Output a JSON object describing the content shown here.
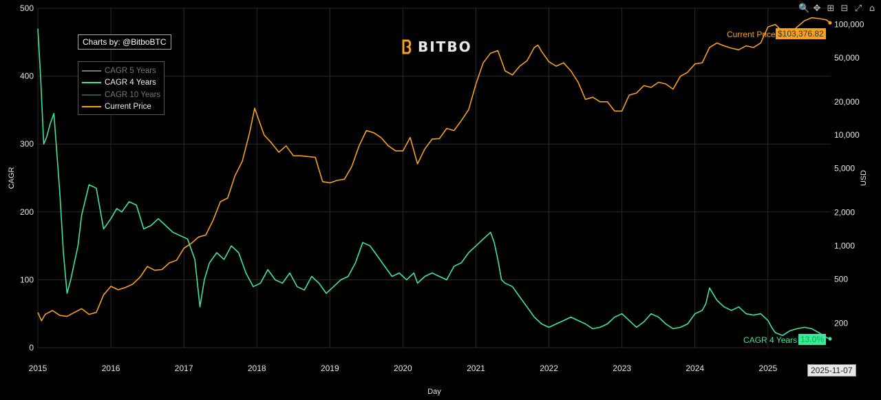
{
  "toolbar": [
    {
      "name": "zoom-icon",
      "glyph": "🔍"
    },
    {
      "name": "pan-icon",
      "glyph": "✥"
    },
    {
      "name": "zoom-in-icon",
      "glyph": "⊞"
    },
    {
      "name": "zoom-out-icon",
      "glyph": "⊟"
    },
    {
      "name": "autoscale-icon",
      "glyph": "⤢"
    },
    {
      "name": "home-icon",
      "glyph": "⌂"
    }
  ],
  "credit": "Charts by: @BitboBTC",
  "brand": "BITBO",
  "legend": [
    {
      "label": "CAGR 5 Years",
      "color": "#777777",
      "active": false
    },
    {
      "label": "CAGR 4 Years",
      "color": "#3ee6a0",
      "active": true
    },
    {
      "label": "CAGR 10 Years",
      "color": "#1f5f3f",
      "active": false
    },
    {
      "label": "Current Price",
      "color": "#f7a21a",
      "active": true
    }
  ],
  "annotations": {
    "price_label": "Current Price",
    "price_value": "$103,376.82",
    "cagr_label": "CAGR 4 Years",
    "cagr_value": "13.0%",
    "date": "2025-11-07"
  },
  "colors": {
    "cagr": "#3ee6a0",
    "price": "#f7a21a",
    "grid": "#2a2a2a"
  },
  "chart_data": {
    "type": "line",
    "xlabel": "Day",
    "ylabel": "CAGR",
    "y2label": "USD",
    "xlim": [
      2015.0,
      2025.86
    ],
    "ylim": [
      0,
      500
    ],
    "y2_scale": "log",
    "y2lim": [
      120,
      140000
    ],
    "x_ticks": [
      "2015",
      "2016",
      "2017",
      "2018",
      "2019",
      "2020",
      "2021",
      "2022",
      "2023",
      "2024",
      "2025"
    ],
    "y_ticks": [
      0,
      100,
      200,
      300,
      400,
      500
    ],
    "y2_ticks": [
      {
        "value": 200,
        "label": "200"
      },
      {
        "value": 500,
        "label": "500"
      },
      {
        "value": 1000,
        "label": "1,000"
      },
      {
        "value": 2000,
        "label": "2,000"
      },
      {
        "value": 5000,
        "label": "5,000"
      },
      {
        "value": 10000,
        "label": "10,000"
      },
      {
        "value": 20000,
        "label": "20,000"
      },
      {
        "value": 50000,
        "label": "50,000"
      },
      {
        "value": 100000,
        "label": "100,000"
      }
    ],
    "grid": true,
    "legend_position": "top-left",
    "series": [
      {
        "name": "CAGR 4 Years",
        "axis": "left",
        "x": [
          2015.0,
          2015.04,
          2015.08,
          2015.12,
          2015.17,
          2015.22,
          2015.3,
          2015.35,
          2015.4,
          2015.45,
          2015.5,
          2015.55,
          2015.6,
          2015.7,
          2015.8,
          2015.9,
          2016.0,
          2016.08,
          2016.15,
          2016.25,
          2016.35,
          2016.45,
          2016.55,
          2016.65,
          2016.75,
          2016.85,
          2016.95,
          2017.05,
          2017.15,
          2017.22,
          2017.28,
          2017.35,
          2017.45,
          2017.55,
          2017.65,
          2017.75,
          2017.85,
          2017.95,
          2018.05,
          2018.15,
          2018.25,
          2018.35,
          2018.45,
          2018.55,
          2018.65,
          2018.75,
          2018.85,
          2018.95,
          2019.05,
          2019.15,
          2019.25,
          2019.35,
          2019.45,
          2019.55,
          2019.65,
          2019.75,
          2019.85,
          2019.95,
          2020.05,
          2020.15,
          2020.2,
          2020.3,
          2020.4,
          2020.5,
          2020.6,
          2020.7,
          2020.8,
          2020.9,
          2021.0,
          2021.1,
          2021.2,
          2021.25,
          2021.3,
          2021.35,
          2021.4,
          2021.5,
          2021.6,
          2021.7,
          2021.8,
          2021.9,
          2022.0,
          2022.1,
          2022.2,
          2022.3,
          2022.4,
          2022.5,
          2022.6,
          2022.7,
          2022.8,
          2022.9,
          2023.0,
          2023.1,
          2023.2,
          2023.3,
          2023.4,
          2023.5,
          2023.6,
          2023.7,
          2023.8,
          2023.9,
          2024.0,
          2024.1,
          2024.15,
          2024.2,
          2024.3,
          2024.4,
          2024.5,
          2024.6,
          2024.7,
          2024.8,
          2024.9,
          2025.0,
          2025.05,
          2025.1,
          2025.2,
          2025.3,
          2025.4,
          2025.5,
          2025.6,
          2025.7,
          2025.78,
          2025.85
        ],
        "y": [
          470,
          395,
          300,
          310,
          330,
          345,
          230,
          140,
          80,
          100,
          125,
          150,
          195,
          240,
          235,
          175,
          190,
          205,
          200,
          215,
          210,
          175,
          180,
          190,
          180,
          170,
          165,
          160,
          130,
          60,
          100,
          125,
          140,
          130,
          150,
          140,
          110,
          90,
          95,
          115,
          100,
          95,
          110,
          90,
          85,
          105,
          95,
          80,
          90,
          100,
          105,
          125,
          155,
          150,
          135,
          120,
          105,
          110,
          100,
          110,
          95,
          105,
          110,
          105,
          100,
          120,
          125,
          140,
          150,
          160,
          170,
          155,
          130,
          100,
          95,
          90,
          75,
          60,
          45,
          35,
          30,
          35,
          40,
          45,
          40,
          35,
          28,
          30,
          35,
          45,
          50,
          40,
          30,
          38,
          50,
          45,
          35,
          28,
          30,
          35,
          50,
          55,
          65,
          88,
          70,
          60,
          55,
          60,
          50,
          48,
          50,
          40,
          30,
          22,
          18,
          25,
          28,
          30,
          28,
          22,
          16,
          13
        ]
      },
      {
        "name": "Current Price",
        "axis": "right",
        "x": [
          2015.0,
          2015.05,
          2015.1,
          2015.2,
          2015.3,
          2015.4,
          2015.5,
          2015.6,
          2015.7,
          2015.8,
          2015.9,
          2016.0,
          2016.1,
          2016.2,
          2016.3,
          2016.4,
          2016.5,
          2016.6,
          2016.7,
          2016.8,
          2016.9,
          2017.0,
          2017.1,
          2017.2,
          2017.3,
          2017.4,
          2017.5,
          2017.6,
          2017.7,
          2017.8,
          2017.9,
          2017.97,
          2018.02,
          2018.1,
          2018.2,
          2018.3,
          2018.4,
          2018.5,
          2018.6,
          2018.7,
          2018.8,
          2018.9,
          2019.0,
          2019.1,
          2019.2,
          2019.3,
          2019.4,
          2019.5,
          2019.6,
          2019.7,
          2019.8,
          2019.9,
          2020.0,
          2020.1,
          2020.2,
          2020.3,
          2020.4,
          2020.5,
          2020.6,
          2020.7,
          2020.8,
          2020.9,
          2021.0,
          2021.1,
          2021.2,
          2021.3,
          2021.4,
          2021.5,
          2021.6,
          2021.7,
          2021.8,
          2021.85,
          2021.9,
          2022.0,
          2022.1,
          2022.2,
          2022.3,
          2022.4,
          2022.5,
          2022.6,
          2022.7,
          2022.8,
          2022.9,
          2023.0,
          2023.1,
          2023.2,
          2023.3,
          2023.4,
          2023.5,
          2023.6,
          2023.7,
          2023.8,
          2023.9,
          2024.0,
          2024.1,
          2024.2,
          2024.3,
          2024.4,
          2024.5,
          2024.6,
          2024.7,
          2024.8,
          2024.9,
          2025.0,
          2025.1,
          2025.2,
          2025.3,
          2025.4,
          2025.5,
          2025.6,
          2025.7,
          2025.8,
          2025.85
        ],
        "y": [
          250,
          210,
          240,
          260,
          235,
          230,
          250,
          270,
          240,
          250,
          360,
          430,
          400,
          420,
          450,
          520,
          650,
          600,
          610,
          700,
          740,
          950,
          1050,
          1200,
          1250,
          1700,
          2500,
          2700,
          4300,
          5800,
          10500,
          17500,
          14000,
          10000,
          8500,
          7000,
          8000,
          6500,
          6500,
          6400,
          6300,
          3800,
          3700,
          3900,
          4000,
          5200,
          8000,
          11000,
          10500,
          9500,
          8000,
          7200,
          7200,
          9500,
          5500,
          7500,
          9200,
          9300,
          11500,
          11000,
          13500,
          17000,
          29000,
          45000,
          55000,
          58000,
          38000,
          35000,
          42000,
          47000,
          62000,
          65000,
          57000,
          46000,
          42000,
          45000,
          38000,
          30000,
          21000,
          22000,
          20000,
          20000,
          16500,
          16500,
          23000,
          24000,
          28000,
          27000,
          30000,
          29000,
          26000,
          34000,
          37000,
          44000,
          45000,
          62000,
          68000,
          64000,
          61000,
          59000,
          64000,
          62000,
          68000,
          95000,
          100000,
          86000,
          82000,
          95000,
          108000,
          115000,
          113000,
          110000,
          103376.82
        ]
      }
    ]
  }
}
